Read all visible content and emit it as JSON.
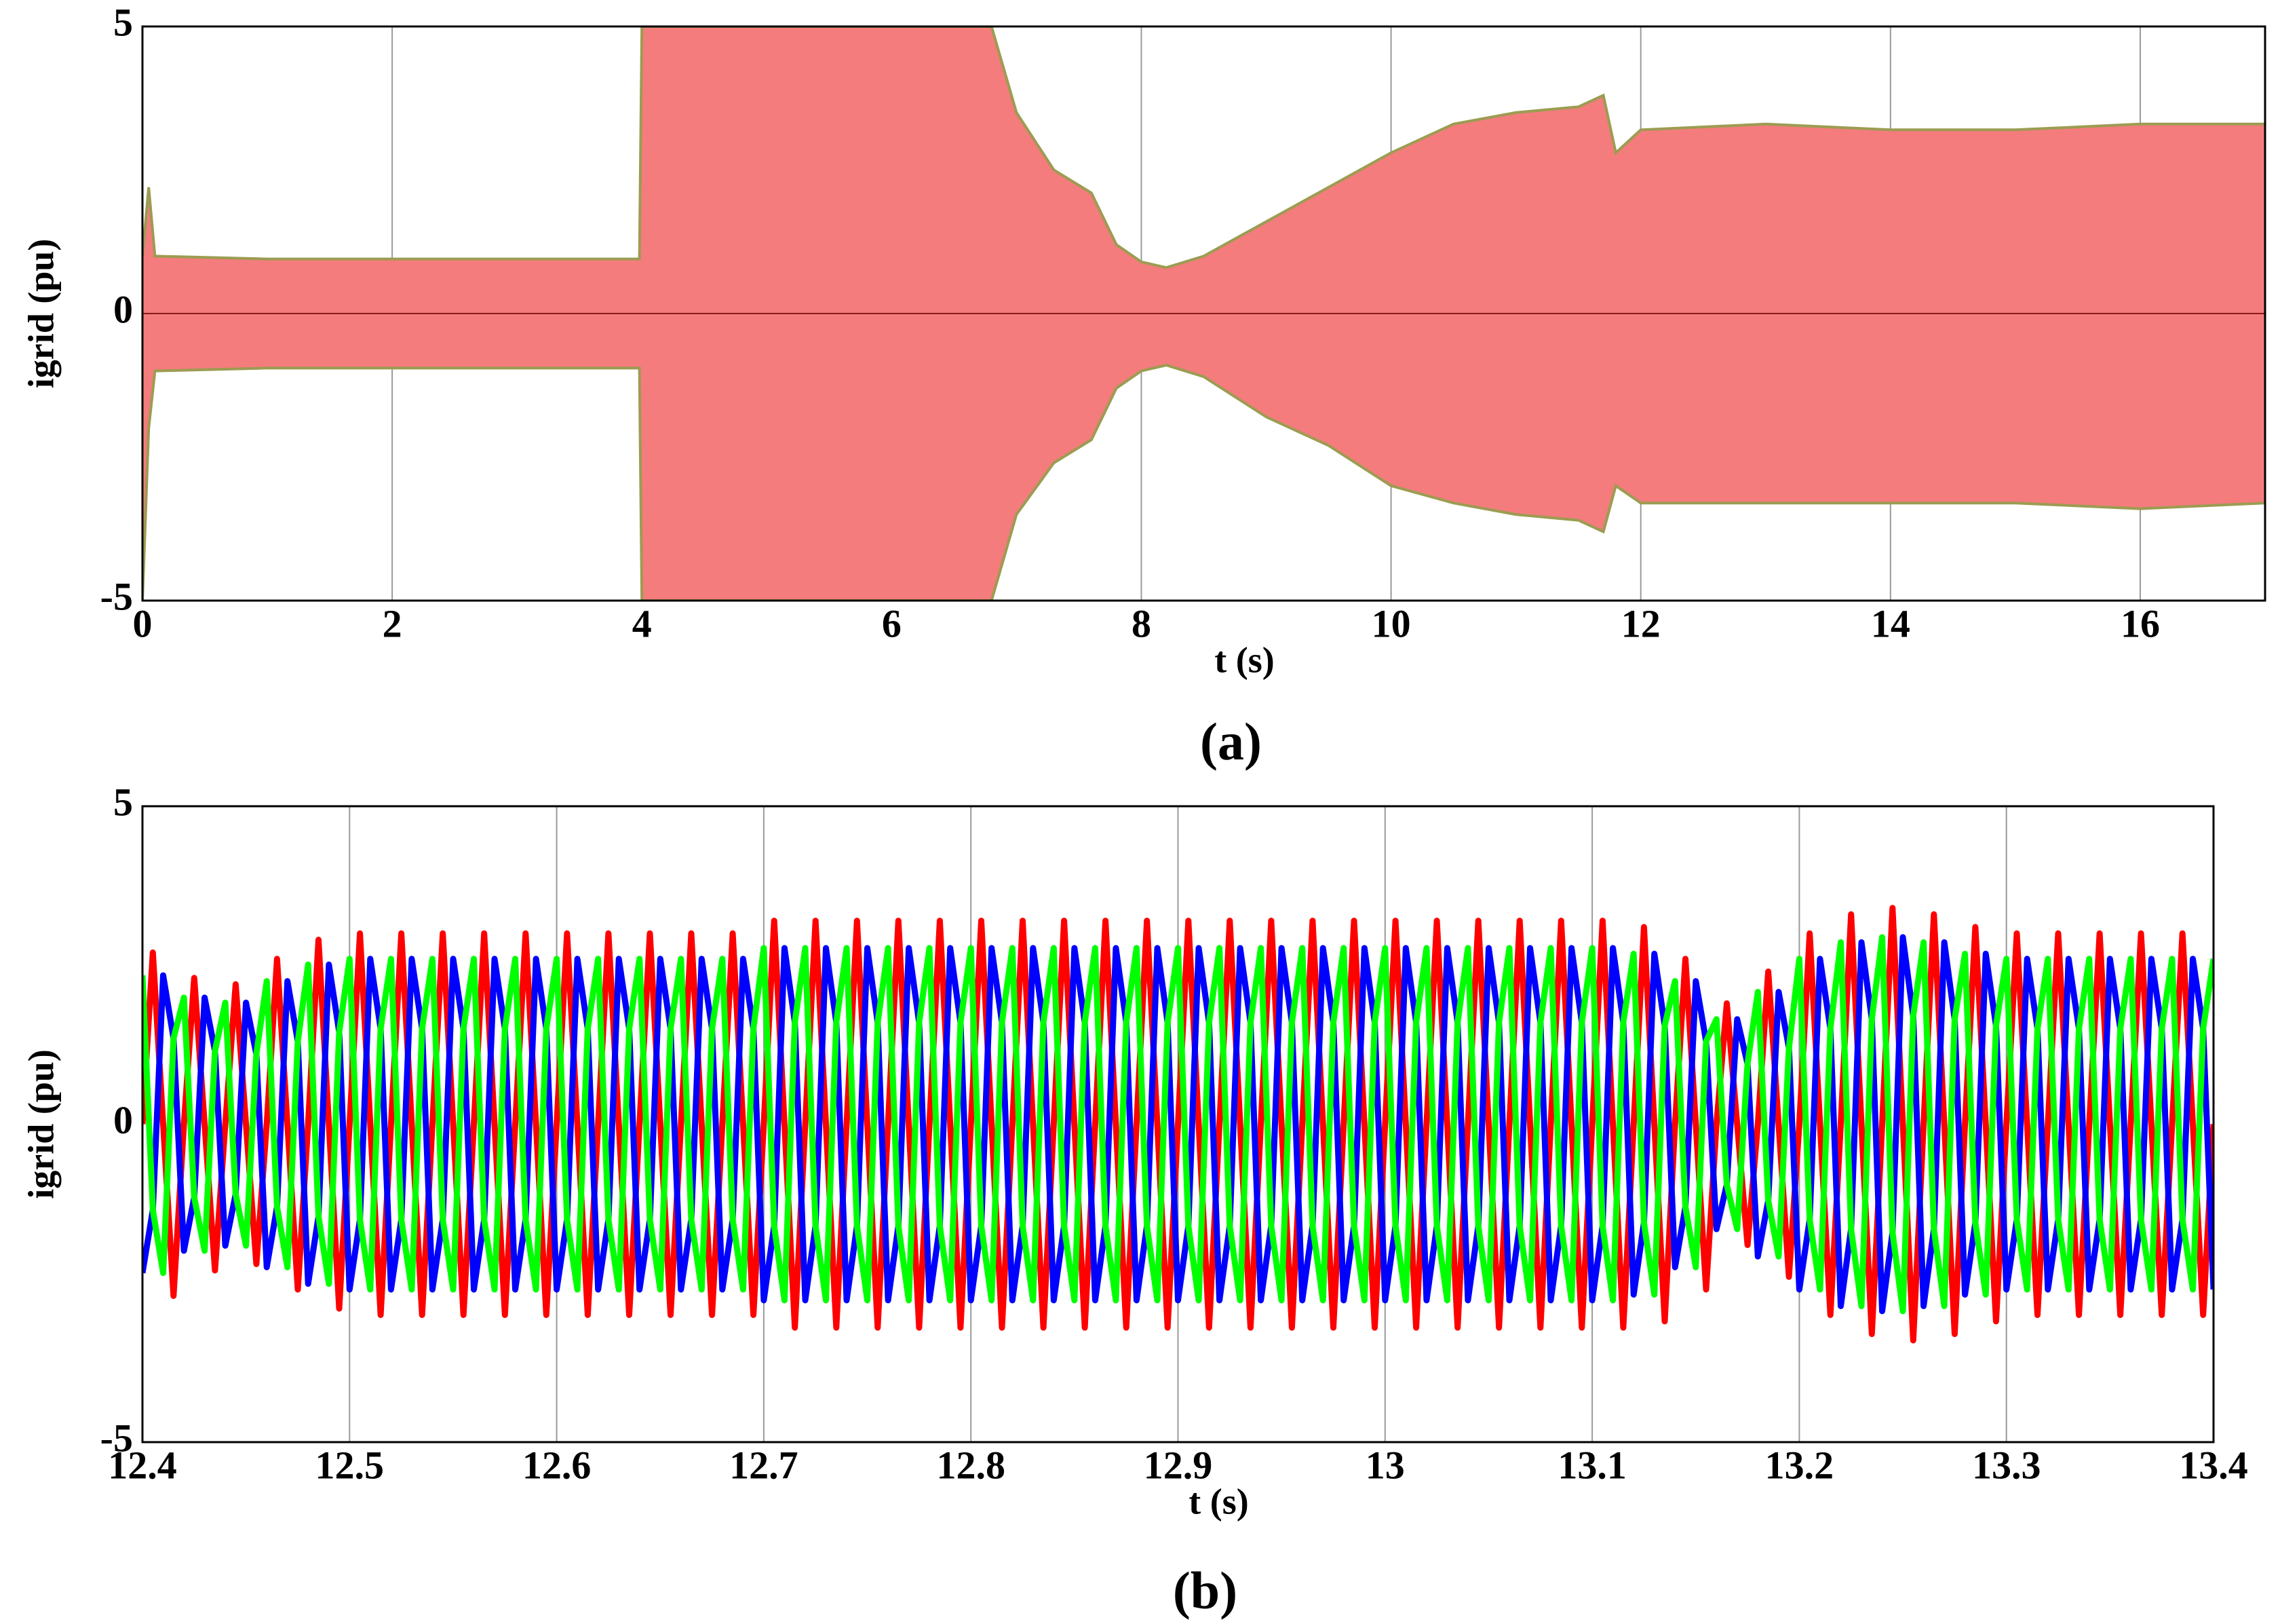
{
  "chart_data": [
    {
      "type": "band",
      "caption": "(a)",
      "xlabel": "t (s)",
      "ylabel": "igrid (pu)",
      "x": [
        0,
        0.05,
        0.1,
        1,
        2,
        3,
        3.98,
        4,
        5,
        6,
        6.5,
        6.8,
        7,
        7.3,
        7.6,
        7.8,
        8,
        8.2,
        8.5,
        9,
        9.5,
        10,
        10.5,
        11,
        11.5,
        11.7,
        11.8,
        12,
        13,
        14,
        15,
        16,
        17
      ],
      "upper": [
        1,
        2.2,
        1,
        0.95,
        0.95,
        0.95,
        0.95,
        5,
        5,
        5,
        5,
        5,
        3.5,
        2.5,
        2.1,
        1.2,
        0.9,
        0.8,
        1,
        1.6,
        2.2,
        2.8,
        3.3,
        3.5,
        3.6,
        3.8,
        2.8,
        3.2,
        3.3,
        3.2,
        3.2,
        3.3,
        3.3
      ],
      "lower": [
        -5,
        -2,
        -1,
        -0.95,
        -0.95,
        -0.95,
        -0.95,
        -5,
        -5,
        -5,
        -5,
        -5,
        -3.5,
        -2.6,
        -2.2,
        -1.3,
        -1,
        -0.9,
        -1.1,
        -1.8,
        -2.3,
        -3,
        -3.3,
        -3.5,
        -3.6,
        -3.8,
        -3,
        -3.3,
        -3.3,
        -3.3,
        -3.3,
        -3.4,
        -3.3
      ],
      "color": "#f47c7c",
      "edge_color": "#9c9c52",
      "zero_color": "#8b1a1a",
      "xlim": [
        0,
        17
      ],
      "xticks": [
        0,
        2,
        4,
        6,
        8,
        10,
        12,
        14,
        16
      ],
      "ylim": [
        -5,
        5
      ],
      "yticks": [
        -5,
        0,
        5
      ],
      "grid": "both"
    },
    {
      "type": "line",
      "caption": "(b)",
      "xlabel": "t (s)",
      "ylabel": "igrid (pu)",
      "x": [
        12.4,
        12.405,
        12.41,
        12.415,
        12.42,
        12.425,
        12.43,
        12.435,
        12.44,
        12.445,
        12.45,
        12.455,
        12.46,
        12.465,
        12.47,
        12.475,
        12.48,
        12.485,
        12.49,
        12.495,
        12.5,
        12.505,
        12.51,
        12.515,
        12.52,
        12.525,
        12.53,
        12.535,
        12.54,
        12.545,
        12.55,
        12.555,
        12.56,
        12.565,
        12.57,
        12.575,
        12.58,
        12.585,
        12.59,
        12.595,
        12.6,
        12.605,
        12.61,
        12.615,
        12.62,
        12.625,
        12.63,
        12.635,
        12.64,
        12.645,
        12.65,
        12.655,
        12.66,
        12.665,
        12.67,
        12.675,
        12.68,
        12.685,
        12.69,
        12.695,
        12.7,
        12.705,
        12.71,
        12.715,
        12.72,
        12.725,
        12.73,
        12.735,
        12.74,
        12.745,
        12.75,
        12.755,
        12.76,
        12.765,
        12.77,
        12.775,
        12.78,
        12.785,
        12.79,
        12.795,
        12.8,
        12.805,
        12.81,
        12.815,
        12.82,
        12.825,
        12.83,
        12.835,
        12.84,
        12.845,
        12.85,
        12.855,
        12.86,
        12.865,
        12.87,
        12.875,
        12.88,
        12.885,
        12.89,
        12.895,
        12.9,
        12.905,
        12.91,
        12.915,
        12.92,
        12.925,
        12.93,
        12.935,
        12.94,
        12.945,
        12.95,
        12.955,
        12.96,
        12.965,
        12.97,
        12.975,
        12.98,
        12.985,
        12.99,
        12.995,
        13,
        13.005,
        13.01,
        13.015,
        13.02,
        13.025,
        13.03,
        13.035,
        13.04,
        13.045,
        13.05,
        13.055,
        13.06,
        13.065,
        13.07,
        13.075,
        13.08,
        13.085,
        13.09,
        13.095,
        13.1,
        13.105,
        13.11,
        13.115,
        13.12,
        13.125,
        13.13,
        13.135,
        13.14,
        13.145,
        13.15,
        13.155,
        13.16,
        13.165,
        13.17,
        13.175,
        13.18,
        13.185,
        13.19,
        13.195,
        13.2,
        13.205,
        13.21,
        13.215,
        13.22,
        13.225,
        13.23,
        13.235,
        13.24,
        13.245,
        13.25,
        13.255,
        13.26,
        13.265,
        13.27,
        13.275,
        13.28,
        13.285,
        13.29,
        13.295,
        13.3,
        13.305,
        13.31,
        13.315,
        13.32,
        13.325,
        13.33,
        13.335,
        13.34,
        13.345,
        13.35,
        13.355,
        13.36,
        13.365,
        13.37,
        13.375,
        13.38,
        13.385,
        13.39,
        13.395,
        13.4
      ],
      "series": [
        {
          "color": "#ff0000",
          "values": [
            0,
            2.7,
            0,
            -2.7,
            0,
            2.3,
            0,
            -2.3,
            0,
            2.2,
            0,
            -2.2,
            0,
            2.6,
            0,
            -2.6,
            0,
            2.9,
            0,
            -2.9,
            0,
            3,
            0,
            -3,
            0,
            3,
            0,
            -3,
            0,
            3,
            0,
            -3,
            0,
            3,
            0,
            -3,
            0,
            3,
            0,
            -3,
            0,
            3,
            0,
            -3,
            0,
            3,
            0,
            -3,
            0,
            3,
            0,
            -3,
            0,
            3,
            0,
            -3,
            0,
            3,
            0,
            -3,
            0,
            3.2,
            0,
            -3.2,
            0,
            3.2,
            0,
            -3.2,
            0,
            3.2,
            0,
            -3.2,
            0,
            3.2,
            0,
            -3.2,
            0,
            3.2,
            0,
            -3.2,
            0,
            3.2,
            0,
            -3.2,
            0,
            3.2,
            0,
            -3.2,
            0,
            3.2,
            0,
            -3.2,
            0,
            3.2,
            0,
            -3.2,
            0,
            3.2,
            0,
            -3.2,
            0,
            3.2,
            0,
            -3.2,
            0,
            3.2,
            0,
            -3.2,
            0,
            3.2,
            0,
            -3.2,
            0,
            3.2,
            0,
            -3.2,
            0,
            3.2,
            0,
            -3.2,
            0,
            3.2,
            0,
            -3.2,
            0,
            3.2,
            0,
            -3.2,
            0,
            3.2,
            0,
            -3.2,
            0,
            3.2,
            0,
            -3.2,
            0,
            3.2,
            0,
            -3.2,
            0,
            3.2,
            0,
            -3.2,
            0,
            3.1,
            0,
            -3.1,
            0,
            2.6,
            0,
            -2.6,
            0,
            1.9,
            0,
            -1.9,
            0,
            2.4,
            0,
            -2.4,
            0,
            3,
            0,
            -3,
            0,
            3.3,
            0,
            -3.3,
            0,
            3.4,
            0,
            -3.4,
            0,
            3.3,
            0,
            -3.3,
            0,
            3.1,
            0,
            -3.1,
            0,
            3,
            0,
            -3,
            0,
            3,
            0,
            -3,
            0,
            3,
            0,
            -3,
            0,
            3,
            0,
            -3,
            0,
            3,
            0,
            -3,
            0
          ]
        },
        {
          "color": "#0000ff",
          "values": [
            -2.34,
            -1.35,
            2.34,
            1.35,
            -1.99,
            -1.15,
            1.99,
            1.15,
            -1.91,
            -1.1,
            1.91,
            1.1,
            -2.25,
            -1.3,
            2.25,
            1.3,
            -2.51,
            -1.45,
            2.51,
            1.45,
            -2.6,
            -1.5,
            2.6,
            1.5,
            -2.6,
            -1.5,
            2.6,
            1.5,
            -2.6,
            -1.5,
            2.6,
            1.5,
            -2.6,
            -1.5,
            2.6,
            1.5,
            -2.6,
            -1.5,
            2.6,
            1.5,
            -2.6,
            -1.5,
            2.6,
            1.5,
            -2.6,
            -1.5,
            2.6,
            1.5,
            -2.6,
            -1.5,
            2.6,
            1.5,
            -2.6,
            -1.5,
            2.6,
            1.5,
            -2.6,
            -1.5,
            2.6,
            1.5,
            -2.77,
            -1.6,
            2.77,
            1.6,
            -2.77,
            -1.6,
            2.77,
            1.6,
            -2.77,
            -1.6,
            2.77,
            1.6,
            -2.77,
            -1.6,
            2.77,
            1.6,
            -2.77,
            -1.6,
            2.77,
            1.6,
            -2.77,
            -1.6,
            2.77,
            1.6,
            -2.77,
            -1.6,
            2.77,
            1.6,
            -2.77,
            -1.6,
            2.77,
            1.6,
            -2.77,
            -1.6,
            2.77,
            1.6,
            -2.77,
            -1.6,
            2.77,
            1.6,
            -2.77,
            -1.6,
            2.77,
            1.6,
            -2.77,
            -1.6,
            2.77,
            1.6,
            -2.77,
            -1.6,
            2.77,
            1.6,
            -2.77,
            -1.6,
            2.77,
            1.6,
            -2.77,
            -1.6,
            2.77,
            1.6,
            -2.77,
            -1.6,
            2.77,
            1.6,
            -2.77,
            -1.6,
            2.77,
            1.6,
            -2.77,
            -1.6,
            2.77,
            1.6,
            -2.77,
            -1.6,
            2.77,
            1.6,
            -2.77,
            -1.6,
            2.77,
            1.6,
            -2.77,
            -1.6,
            2.77,
            1.6,
            -2.68,
            -1.55,
            2.68,
            1.55,
            -2.25,
            -1.3,
            2.25,
            1.3,
            -1.65,
            -0.95,
            1.65,
            0.95,
            -2.08,
            -1.2,
            2.08,
            1.2,
            -2.6,
            -1.5,
            2.6,
            1.5,
            -2.86,
            -1.65,
            2.86,
            1.65,
            -2.94,
            -1.7,
            2.94,
            1.7,
            -2.86,
            -1.65,
            2.86,
            1.65,
            -2.68,
            -1.55,
            2.68,
            1.55,
            -2.6,
            -1.5,
            2.6,
            1.5,
            -2.6,
            -1.5,
            2.6,
            1.5,
            -2.6,
            -1.5,
            2.6,
            1.5,
            -2.6,
            -1.5,
            2.6,
            1.5,
            -2.6,
            -1.5,
            2.6,
            1.5,
            -2.6
          ]
        },
        {
          "color": "#00ff00",
          "values": [
            2.34,
            -1.35,
            -2.34,
            1.35,
            1.99,
            -1.15,
            -1.99,
            1.15,
            1.91,
            -1.1,
            -1.91,
            1.1,
            2.25,
            -1.3,
            -2.25,
            1.3,
            2.51,
            -1.45,
            -2.51,
            1.45,
            2.6,
            -1.5,
            -2.6,
            1.5,
            2.6,
            -1.5,
            -2.6,
            1.5,
            2.6,
            -1.5,
            -2.6,
            1.5,
            2.6,
            -1.5,
            -2.6,
            1.5,
            2.6,
            -1.5,
            -2.6,
            1.5,
            2.6,
            -1.5,
            -2.6,
            1.5,
            2.6,
            -1.5,
            -2.6,
            1.5,
            2.6,
            -1.5,
            -2.6,
            1.5,
            2.6,
            -1.5,
            -2.6,
            1.5,
            2.6,
            -1.5,
            -2.6,
            1.5,
            2.77,
            -1.6,
            -2.77,
            1.6,
            2.77,
            -1.6,
            -2.77,
            1.6,
            2.77,
            -1.6,
            -2.77,
            1.6,
            2.77,
            -1.6,
            -2.77,
            1.6,
            2.77,
            -1.6,
            -2.77,
            1.6,
            2.77,
            -1.6,
            -2.77,
            1.6,
            2.77,
            -1.6,
            -2.77,
            1.6,
            2.77,
            -1.6,
            -2.77,
            1.6,
            2.77,
            -1.6,
            -2.77,
            1.6,
            2.77,
            -1.6,
            -2.77,
            1.6,
            2.77,
            -1.6,
            -2.77,
            1.6,
            2.77,
            -1.6,
            -2.77,
            1.6,
            2.77,
            -1.6,
            -2.77,
            1.6,
            2.77,
            -1.6,
            -2.77,
            1.6,
            2.77,
            -1.6,
            -2.77,
            1.6,
            2.77,
            -1.6,
            -2.77,
            1.6,
            2.77,
            -1.6,
            -2.77,
            1.6,
            2.77,
            -1.6,
            -2.77,
            1.6,
            2.77,
            -1.6,
            -2.77,
            1.6,
            2.77,
            -1.6,
            -2.77,
            1.6,
            2.77,
            -1.6,
            -2.77,
            1.6,
            2.68,
            -1.55,
            -2.68,
            1.55,
            2.25,
            -1.3,
            -2.25,
            1.3,
            1.65,
            -0.95,
            -1.65,
            0.95,
            2.08,
            -1.2,
            -2.08,
            1.2,
            2.6,
            -1.5,
            -2.6,
            1.5,
            2.86,
            -1.65,
            -2.86,
            1.65,
            2.94,
            -1.7,
            -2.94,
            1.7,
            2.86,
            -1.65,
            -2.86,
            1.65,
            2.68,
            -1.55,
            -2.68,
            1.55,
            2.6,
            -1.5,
            -2.6,
            1.5,
            2.6,
            -1.5,
            -2.6,
            1.5,
            2.6,
            -1.5,
            -2.6,
            1.5,
            2.6,
            -1.5,
            -2.6,
            1.5,
            2.6,
            -1.5,
            -2.6,
            1.5,
            2.6
          ]
        }
      ],
      "xlim": [
        12.4,
        13.4
      ],
      "xticks": [
        12.4,
        12.5,
        12.6,
        12.7,
        12.8,
        12.9,
        13,
        13.1,
        13.2,
        13.3,
        13.4
      ],
      "ylim": [
        -5,
        5
      ],
      "yticks": [
        -5,
        0,
        5
      ],
      "grid": "x"
    }
  ]
}
